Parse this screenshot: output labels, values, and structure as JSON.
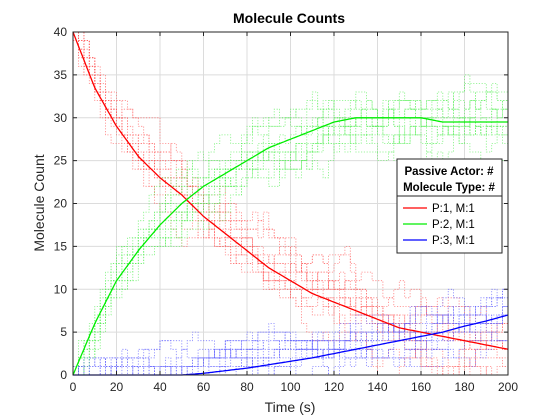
{
  "chart_data": {
    "type": "line",
    "title": "Molecule Counts",
    "xlabel": "Time (s)",
    "ylabel": "Molecule Count",
    "xlim": [
      0,
      200
    ],
    "ylim": [
      0,
      40
    ],
    "xticks": [
      0,
      20,
      40,
      60,
      80,
      100,
      120,
      140,
      160,
      180,
      200
    ],
    "yticks": [
      0,
      5,
      10,
      15,
      20,
      25,
      30,
      35,
      40
    ],
    "grid": true,
    "legend": {
      "placement": "right",
      "header_lines": [
        "Passive Actor: #",
        "Molecule Type: #"
      ]
    },
    "x": [
      0,
      10,
      20,
      30,
      40,
      50,
      60,
      70,
      80,
      90,
      100,
      110,
      120,
      130,
      140,
      150,
      160,
      170,
      180,
      190,
      200
    ],
    "series": [
      {
        "name": "P:1, M:1",
        "color": "#ff0000",
        "values": [
          40,
          33.5,
          29,
          25.5,
          23,
          21,
          18.5,
          16.5,
          14.5,
          12.5,
          11,
          9.5,
          8.5,
          7.5,
          6.5,
          5.5,
          5,
          4.5,
          4,
          3.5,
          3
        ]
      },
      {
        "name": "P:2, M:1",
        "color": "#00ee00",
        "values": [
          0,
          6,
          11,
          14.5,
          17.5,
          20,
          22,
          23.5,
          25,
          26.5,
          27.5,
          28.5,
          29.5,
          30,
          30,
          30,
          30,
          29.5,
          29.5,
          29.5,
          29.5
        ]
      },
      {
        "name": "P:3, M:1",
        "color": "#0000ff",
        "values": [
          0,
          0,
          0,
          0,
          0,
          0,
          0.2,
          0.5,
          0.8,
          1.2,
          1.6,
          2,
          2.5,
          3,
          3.5,
          4,
          4.5,
          5,
          5.7,
          6.3,
          7
        ]
      }
    ]
  }
}
